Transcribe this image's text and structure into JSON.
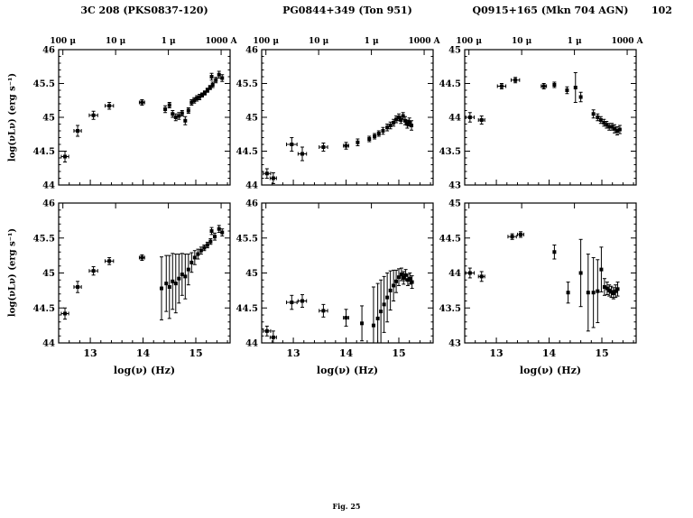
{
  "page": {
    "number": "102",
    "caption": "Fig. 25"
  },
  "columns": [
    {
      "title": "3C 208 (PKS0837-120)"
    },
    {
      "title": "PG0844+349 (Ton 951)"
    },
    {
      "title": "Q0915+165 (Mkn 704 AGN)"
    }
  ],
  "axis_labels": {
    "y": "log(νLν) (erg s⁻¹)",
    "x": "log(ν) (Hz)"
  },
  "wavelength_axis": {
    "ticks": [
      12.48,
      13.48,
      14.48,
      15.48
    ],
    "labels": [
      "100 μ",
      "10 μ",
      "1 μ",
      "1000 A"
    ]
  },
  "chart_data": [
    {
      "type": "scatter",
      "object": "3C 208 (PKS0837-120)",
      "row": "top",
      "xlabel": "log(ν) (Hz)",
      "ylabel": "log(νLν) (erg s⁻¹)",
      "xlim": [
        12.4,
        15.65
      ],
      "ylim": [
        44,
        46
      ],
      "xticks": [
        13,
        14,
        15
      ],
      "yticks": [
        44,
        44.5,
        45,
        45.5,
        46
      ],
      "points": [
        {
          "x": 12.52,
          "y": 44.42,
          "xerr": 0.07,
          "yerr": 0.08
        },
        {
          "x": 12.76,
          "y": 44.8,
          "xerr": 0.07,
          "yerr": 0.08
        },
        {
          "x": 13.06,
          "y": 45.03,
          "xerr": 0.08,
          "yerr": 0.06
        },
        {
          "x": 13.36,
          "y": 45.17,
          "xerr": 0.08,
          "yerr": 0.05
        },
        {
          "x": 13.98,
          "y": 45.22,
          "xerr": 0.05,
          "yerr": 0.04
        },
        {
          "x": 14.42,
          "y": 45.12,
          "yerr": 0.05
        },
        {
          "x": 14.5,
          "y": 45.18,
          "yerr": 0.04
        },
        {
          "x": 14.56,
          "y": 45.05,
          "yerr": 0.05
        },
        {
          "x": 14.62,
          "y": 45.0,
          "yerr": 0.05
        },
        {
          "x": 14.68,
          "y": 45.02,
          "yerr": 0.05
        },
        {
          "x": 14.74,
          "y": 45.06,
          "yerr": 0.04
        },
        {
          "x": 14.8,
          "y": 44.95,
          "yerr": 0.06
        },
        {
          "x": 14.86,
          "y": 45.1,
          "yerr": 0.04
        },
        {
          "x": 14.92,
          "y": 45.22,
          "yerr": 0.04
        },
        {
          "x": 14.97,
          "y": 45.25,
          "yerr": 0.04
        },
        {
          "x": 15.02,
          "y": 45.28,
          "yerr": 0.04
        },
        {
          "x": 15.07,
          "y": 45.3,
          "yerr": 0.04
        },
        {
          "x": 15.12,
          "y": 45.33,
          "yerr": 0.03
        },
        {
          "x": 15.17,
          "y": 45.36,
          "yerr": 0.03
        },
        {
          "x": 15.22,
          "y": 45.4,
          "yerr": 0.03
        },
        {
          "x": 15.27,
          "y": 45.44,
          "yerr": 0.03
        },
        {
          "x": 15.32,
          "y": 45.48,
          "yerr": 0.04
        },
        {
          "x": 15.3,
          "y": 45.6,
          "yerr": 0.05
        },
        {
          "x": 15.38,
          "y": 45.55,
          "yerr": 0.04
        },
        {
          "x": 15.44,
          "y": 45.63,
          "yerr": 0.05
        },
        {
          "x": 15.5,
          "y": 45.58,
          "yerr": 0.05
        }
      ]
    },
    {
      "type": "scatter",
      "object": "PG0844+349 (Ton 951)",
      "row": "top",
      "xlabel": "log(ν) (Hz)",
      "ylabel": "log(νLν) (erg s⁻¹)",
      "xlim": [
        12.4,
        15.65
      ],
      "ylim": [
        44,
        46
      ],
      "xticks": [
        13,
        14,
        15
      ],
      "yticks": [
        44,
        44.5,
        45,
        45.5,
        46
      ],
      "points": [
        {
          "x": 12.5,
          "y": 44.17,
          "xerr": 0.07,
          "yerr": 0.07
        },
        {
          "x": 12.62,
          "y": 44.1,
          "xerr": 0.06,
          "yerr": 0.08
        },
        {
          "x": 12.97,
          "y": 44.6,
          "xerr": 0.1,
          "yerr": 0.1
        },
        {
          "x": 13.17,
          "y": 44.46,
          "xerr": 0.08,
          "yerr": 0.1
        },
        {
          "x": 13.57,
          "y": 44.56,
          "xerr": 0.08,
          "yerr": 0.06
        },
        {
          "x": 14.0,
          "y": 44.58,
          "xerr": 0.05,
          "yerr": 0.05
        },
        {
          "x": 14.22,
          "y": 44.63,
          "yerr": 0.05
        },
        {
          "x": 14.44,
          "y": 44.68,
          "yerr": 0.04
        },
        {
          "x": 14.54,
          "y": 44.72,
          "yerr": 0.04
        },
        {
          "x": 14.62,
          "y": 44.76,
          "yerr": 0.04
        },
        {
          "x": 14.7,
          "y": 44.8,
          "yerr": 0.05
        },
        {
          "x": 14.78,
          "y": 44.85,
          "yerr": 0.05
        },
        {
          "x": 14.84,
          "y": 44.88,
          "yerr": 0.05
        },
        {
          "x": 14.9,
          "y": 44.92,
          "yerr": 0.05
        },
        {
          "x": 14.95,
          "y": 44.97,
          "yerr": 0.05
        },
        {
          "x": 15.0,
          "y": 45.0,
          "yerr": 0.05
        },
        {
          "x": 15.04,
          "y": 44.96,
          "yerr": 0.05
        },
        {
          "x": 15.08,
          "y": 45.02,
          "yerr": 0.05
        },
        {
          "x": 15.12,
          "y": 44.95,
          "yerr": 0.06
        },
        {
          "x": 15.16,
          "y": 44.9,
          "yerr": 0.06
        },
        {
          "x": 15.2,
          "y": 44.93,
          "yerr": 0.06
        },
        {
          "x": 15.24,
          "y": 44.88,
          "yerr": 0.07
        }
      ]
    },
    {
      "type": "scatter",
      "object": "Q0915+165 (Mkn 704 AGN)",
      "row": "top",
      "xlabel": "log(ν) (Hz)",
      "ylabel": "log(νLν) (erg s⁻¹)",
      "xlim": [
        12.4,
        15.65
      ],
      "ylim": [
        43,
        45
      ],
      "xticks": [
        13,
        14,
        15
      ],
      "yticks": [
        43,
        43.5,
        44,
        44.5,
        45
      ],
      "points": [
        {
          "x": 12.5,
          "y": 44.0,
          "xerr": 0.08,
          "yerr": 0.07
        },
        {
          "x": 12.72,
          "y": 43.96,
          "xerr": 0.06,
          "yerr": 0.06
        },
        {
          "x": 13.1,
          "y": 44.46,
          "xerr": 0.08,
          "yerr": 0.04
        },
        {
          "x": 13.36,
          "y": 44.55,
          "xerr": 0.08,
          "yerr": 0.04
        },
        {
          "x": 13.9,
          "y": 44.46,
          "xerr": 0.05,
          "yerr": 0.04
        },
        {
          "x": 14.1,
          "y": 44.48,
          "yerr": 0.04
        },
        {
          "x": 14.34,
          "y": 44.4,
          "yerr": 0.05
        },
        {
          "x": 14.5,
          "y": 44.44,
          "yerr": 0.22
        },
        {
          "x": 14.6,
          "y": 44.3,
          "yerr": 0.07
        },
        {
          "x": 14.84,
          "y": 44.05,
          "yerr": 0.06
        },
        {
          "x": 14.92,
          "y": 44.0,
          "yerr": 0.05
        },
        {
          "x": 14.98,
          "y": 43.96,
          "yerr": 0.05
        },
        {
          "x": 15.04,
          "y": 43.92,
          "yerr": 0.05
        },
        {
          "x": 15.09,
          "y": 43.89,
          "yerr": 0.05
        },
        {
          "x": 15.14,
          "y": 43.86,
          "yerr": 0.05
        },
        {
          "x": 15.19,
          "y": 43.86,
          "yerr": 0.05
        },
        {
          "x": 15.24,
          "y": 43.83,
          "yerr": 0.06
        },
        {
          "x": 15.29,
          "y": 43.8,
          "yerr": 0.06
        },
        {
          "x": 15.34,
          "y": 43.82,
          "yerr": 0.06
        }
      ]
    },
    {
      "type": "scatter",
      "object": "3C 208 (PKS0837-120)",
      "row": "bottom",
      "xlabel": "log(ν) (Hz)",
      "ylabel": "log(νLν) (erg s⁻¹)",
      "xlim": [
        12.4,
        15.65
      ],
      "ylim": [
        44,
        46
      ],
      "xticks": [
        13,
        14,
        15
      ],
      "yticks": [
        44,
        44.5,
        45,
        45.5,
        46
      ],
      "points": [
        {
          "x": 12.52,
          "y": 44.42,
          "xerr": 0.07,
          "yerr": 0.08
        },
        {
          "x": 12.76,
          "y": 44.8,
          "xerr": 0.07,
          "yerr": 0.08
        },
        {
          "x": 13.06,
          "y": 45.03,
          "xerr": 0.08,
          "yerr": 0.06
        },
        {
          "x": 13.36,
          "y": 45.17,
          "xerr": 0.08,
          "yerr": 0.05
        },
        {
          "x": 13.98,
          "y": 45.22,
          "xerr": 0.05,
          "yerr": 0.04
        },
        {
          "x": 14.35,
          "y": 44.78,
          "yerr": 0.45
        },
        {
          "x": 14.44,
          "y": 44.85,
          "yerr": 0.4
        },
        {
          "x": 14.5,
          "y": 44.8,
          "yerr": 0.45
        },
        {
          "x": 14.56,
          "y": 44.88,
          "yerr": 0.4
        },
        {
          "x": 14.62,
          "y": 44.85,
          "yerr": 0.42
        },
        {
          "x": 14.68,
          "y": 44.92,
          "yerr": 0.35
        },
        {
          "x": 14.74,
          "y": 44.98,
          "yerr": 0.3
        },
        {
          "x": 14.8,
          "y": 44.95,
          "yerr": 0.32
        },
        {
          "x": 14.86,
          "y": 45.05,
          "yerr": 0.22
        },
        {
          "x": 14.92,
          "y": 45.15,
          "yerr": 0.14
        },
        {
          "x": 14.98,
          "y": 45.22,
          "yerr": 0.1
        },
        {
          "x": 15.04,
          "y": 45.27,
          "yerr": 0.07
        },
        {
          "x": 15.1,
          "y": 45.32,
          "yerr": 0.05
        },
        {
          "x": 15.16,
          "y": 45.36,
          "yerr": 0.04
        },
        {
          "x": 15.22,
          "y": 45.4,
          "yerr": 0.04
        },
        {
          "x": 15.28,
          "y": 45.45,
          "yerr": 0.04
        },
        {
          "x": 15.3,
          "y": 45.6,
          "yerr": 0.05
        },
        {
          "x": 15.36,
          "y": 45.52,
          "yerr": 0.05
        },
        {
          "x": 15.44,
          "y": 45.63,
          "yerr": 0.05
        },
        {
          "x": 15.5,
          "y": 45.58,
          "yerr": 0.05
        }
      ]
    },
    {
      "type": "scatter",
      "object": "PG0844+349 (Ton 951)",
      "row": "bottom",
      "xlabel": "log(ν) (Hz)",
      "ylabel": "log(νLν) (erg s⁻¹)",
      "xlim": [
        12.4,
        15.65
      ],
      "ylim": [
        44,
        46
      ],
      "xticks": [
        13,
        14,
        15
      ],
      "yticks": [
        44,
        44.5,
        45,
        45.5,
        46
      ],
      "points": [
        {
          "x": 12.5,
          "y": 44.17,
          "xerr": 0.07,
          "yerr": 0.07
        },
        {
          "x": 12.62,
          "y": 44.08,
          "xerr": 0.06,
          "yerr": 0.09
        },
        {
          "x": 12.97,
          "y": 44.58,
          "xerr": 0.1,
          "yerr": 0.1
        },
        {
          "x": 13.17,
          "y": 44.6,
          "xerr": 0.08,
          "yerr": 0.09
        },
        {
          "x": 13.57,
          "y": 44.46,
          "xerr": 0.08,
          "yerr": 0.09
        },
        {
          "x": 14.0,
          "y": 44.36,
          "xerr": 0.05,
          "yerr": 0.12
        },
        {
          "x": 14.3,
          "y": 44.28,
          "yerr": 0.25
        },
        {
          "x": 14.52,
          "y": 44.25,
          "yerr": 0.55
        },
        {
          "x": 14.6,
          "y": 44.35,
          "yerr": 0.5
        },
        {
          "x": 14.66,
          "y": 44.45,
          "yerr": 0.45
        },
        {
          "x": 14.72,
          "y": 44.55,
          "yerr": 0.4
        },
        {
          "x": 14.78,
          "y": 44.65,
          "yerr": 0.35
        },
        {
          "x": 14.84,
          "y": 44.75,
          "yerr": 0.28
        },
        {
          "x": 14.9,
          "y": 44.82,
          "yerr": 0.22
        },
        {
          "x": 14.95,
          "y": 44.88,
          "yerr": 0.16
        },
        {
          "x": 15.0,
          "y": 44.94,
          "yerr": 0.12
        },
        {
          "x": 15.05,
          "y": 44.98,
          "yerr": 0.09
        },
        {
          "x": 15.09,
          "y": 44.93,
          "yerr": 0.09
        },
        {
          "x": 15.13,
          "y": 44.97,
          "yerr": 0.08
        },
        {
          "x": 15.17,
          "y": 44.9,
          "yerr": 0.08
        },
        {
          "x": 15.21,
          "y": 44.92,
          "yerr": 0.08
        },
        {
          "x": 15.25,
          "y": 44.87,
          "yerr": 0.09
        }
      ]
    },
    {
      "type": "scatter",
      "object": "Q0915+165 (Mkn 704 AGN)",
      "row": "bottom",
      "xlabel": "log(ν) (Hz)",
      "ylabel": "log(νLν) (erg s⁻¹)",
      "xlim": [
        12.4,
        15.65
      ],
      "ylim": [
        43,
        45
      ],
      "xticks": [
        13,
        14,
        15
      ],
      "yticks": [
        43,
        43.5,
        44,
        44.5,
        45
      ],
      "points": [
        {
          "x": 12.5,
          "y": 44.0,
          "xerr": 0.08,
          "yerr": 0.07
        },
        {
          "x": 12.72,
          "y": 43.95,
          "xerr": 0.06,
          "yerr": 0.07
        },
        {
          "x": 13.3,
          "y": 44.52,
          "xerr": 0.08,
          "yerr": 0.04
        },
        {
          "x": 13.46,
          "y": 44.55,
          "xerr": 0.06,
          "yerr": 0.04
        },
        {
          "x": 14.1,
          "y": 44.3,
          "yerr": 0.1
        },
        {
          "x": 14.36,
          "y": 43.72,
          "yerr": 0.15
        },
        {
          "x": 14.6,
          "y": 44.0,
          "yerr": 0.48
        },
        {
          "x": 14.74,
          "y": 43.72,
          "yerr": 0.55
        },
        {
          "x": 14.84,
          "y": 43.72,
          "yerr": 0.5
        },
        {
          "x": 14.92,
          "y": 43.74,
          "yerr": 0.45
        },
        {
          "x": 14.99,
          "y": 44.05,
          "yerr": 0.32
        },
        {
          "x": 15.05,
          "y": 43.8,
          "yerr": 0.12
        },
        {
          "x": 15.1,
          "y": 43.78,
          "yerr": 0.09
        },
        {
          "x": 15.14,
          "y": 43.75,
          "yerr": 0.08
        },
        {
          "x": 15.18,
          "y": 43.73,
          "yerr": 0.08
        },
        {
          "x": 15.22,
          "y": 43.71,
          "yerr": 0.08
        },
        {
          "x": 15.26,
          "y": 43.74,
          "yerr": 0.09
        },
        {
          "x": 15.3,
          "y": 43.77,
          "yerr": 0.1
        }
      ]
    }
  ]
}
